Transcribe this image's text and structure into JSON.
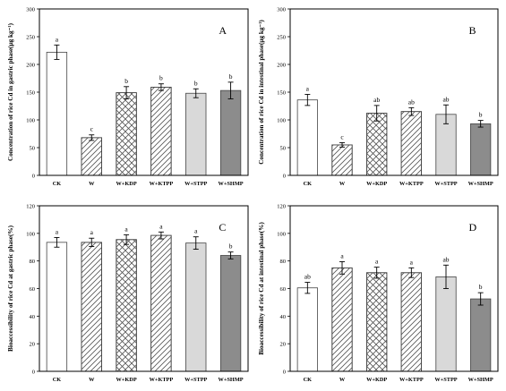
{
  "chart_data": [
    {
      "type": "bar",
      "panel_label": "A",
      "ylabel": "Concentration of rice Cd in gastric phase(μg kg⁻¹)",
      "ylim": [
        0,
        300
      ],
      "yticks": [
        0,
        50,
        100,
        150,
        200,
        250,
        300
      ],
      "categories": [
        "CK",
        "W",
        "W+KDP",
        "W+KTPP",
        "W+STPP",
        "W+SHMP"
      ],
      "values": [
        222,
        68,
        149,
        159,
        148,
        153
      ],
      "errors": [
        13,
        5,
        11,
        6,
        8,
        15
      ],
      "letters": [
        "a",
        "c",
        "b",
        "b",
        "b",
        "b"
      ]
    },
    {
      "type": "bar",
      "panel_label": "B",
      "ylabel": "Concentration of rice Cd in intestinal phase(μg kg⁻¹)",
      "ylim": [
        0,
        300
      ],
      "yticks": [
        0,
        50,
        100,
        150,
        200,
        250,
        300
      ],
      "categories": [
        "CK",
        "W",
        "W+KDP",
        "W+KTPP",
        "W+STPP",
        "W+SHMP"
      ],
      "values": [
        136,
        55,
        112,
        115,
        110,
        93
      ],
      "errors": [
        10,
        4,
        14,
        7,
        17,
        6
      ],
      "letters": [
        "a",
        "c",
        "ab",
        "ab",
        "ab",
        "b"
      ]
    },
    {
      "type": "bar",
      "panel_label": "C",
      "ylabel": "Bioaccessibility of rice Cd at gastric phase(%)",
      "ylim": [
        0,
        120
      ],
      "yticks": [
        0,
        20,
        40,
        60,
        80,
        100,
        120
      ],
      "categories": [
        "CK",
        "W",
        "W+KDP",
        "W+KTPP",
        "W+STPP",
        "W+SHMP"
      ],
      "values": [
        93.5,
        93.5,
        95.5,
        98.5,
        93,
        84
      ],
      "errors": [
        3.5,
        3,
        3.5,
        2.5,
        4.5,
        2.5
      ],
      "letters": [
        "a",
        "a",
        "a",
        "a",
        "a",
        "b"
      ]
    },
    {
      "type": "bar",
      "panel_label": "D",
      "ylabel": "Bioaccessibility of rice Cd at intestinal phase(%)",
      "ylim": [
        0,
        120
      ],
      "yticks": [
        0,
        20,
        40,
        60,
        80,
        100,
        120
      ],
      "categories": [
        "CK",
        "W",
        "W+KDP",
        "W+KTPP",
        "W+STPP",
        "W+SHMP"
      ],
      "values": [
        60.5,
        75,
        71.5,
        71.5,
        68.5,
        52.5
      ],
      "errors": [
        4,
        4.5,
        4,
        3.5,
        8.5,
        4.5
      ],
      "letters": [
        "ab",
        "a",
        "a",
        "a",
        "ab",
        "b"
      ]
    }
  ],
  "bar_styles": [
    {
      "name": "CK",
      "fill": "#ffffff",
      "pattern": "none"
    },
    {
      "name": "W",
      "fill": "#ffffff",
      "pattern": "diagonal"
    },
    {
      "name": "W+KDP",
      "fill": "#ffffff",
      "pattern": "crosshatch"
    },
    {
      "name": "W+KTPP",
      "fill": "#ffffff",
      "pattern": "diagonal"
    },
    {
      "name": "W+STPP",
      "fill": "#d9d9d9",
      "pattern": "none"
    },
    {
      "name": "W+SHMP",
      "fill": "#8c8c8c",
      "pattern": "none"
    }
  ]
}
